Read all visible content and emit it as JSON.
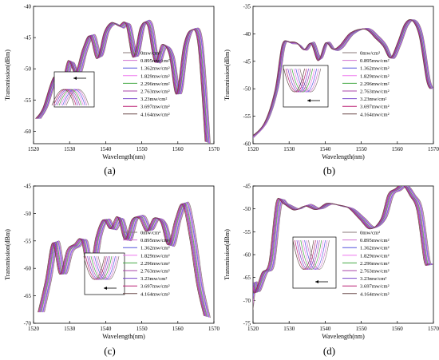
{
  "legend_entries": [
    "0mw/cm²",
    "0.895mw/cm²",
    "1.362mw/cm²",
    "1.829mw/cm²",
    "2.296mw/cm²",
    "2.763mw/cm²",
    "3.23mw/cm²",
    "3.697mw/cm²",
    "4.164mw/cm²"
  ],
  "series_colors": [
    "#8a7a7a",
    "#d070d0",
    "#5555dd",
    "#ee77ee",
    "#44aa44",
    "#aa44aa",
    "#7744cc",
    "#bb2277",
    "#6a4a4a"
  ],
  "chart_data": [
    {
      "type": "line",
      "caption": "(a)",
      "title": "",
      "xlabel": "Wavelength(nm)",
      "ylabel": "Transmission(dBm)",
      "xlim": [
        1520,
        1570
      ],
      "ylim": [
        -62,
        -40
      ],
      "xticks": [
        1520,
        1530,
        1540,
        1550,
        1560,
        1570
      ],
      "yticks": [
        -60,
        -55,
        -50,
        -45,
        -40
      ],
      "shift_per_series": 0.18,
      "x": [
        1522,
        1524,
        1527,
        1529,
        1531,
        1533,
        1535,
        1537,
        1539,
        1541,
        1543,
        1545,
        1547,
        1549,
        1551,
        1553,
        1555,
        1557,
        1559,
        1561,
        1563,
        1565,
        1567,
        1569
      ],
      "base": [
        -58,
        -56,
        -51,
        -53,
        -49,
        -51,
        -47,
        -44.5,
        -48,
        -44,
        -42.8,
        -43.5,
        -43,
        -48,
        -43,
        -42.8,
        -49,
        -46.5,
        -48,
        -54,
        -46,
        -43.5,
        -46,
        -62
      ],
      "inset_arrow": "left",
      "legend_position": "right"
    },
    {
      "type": "line",
      "caption": "(b)",
      "title": "",
      "xlabel": "Wavelength(nm)",
      "ylabel": "Transmission(dBm)",
      "xlim": [
        1520,
        1570
      ],
      "ylim": [
        -60,
        -35
      ],
      "xticks": [
        1520,
        1530,
        1540,
        1550,
        1560,
        1570
      ],
      "yticks": [
        -60,
        -55,
        -50,
        -45,
        -40,
        -35
      ],
      "shift_per_series": 0.12,
      "x": [
        1520,
        1524,
        1527,
        1529,
        1531,
        1533,
        1535,
        1537,
        1539,
        1541,
        1543,
        1545,
        1548,
        1552,
        1555,
        1557,
        1559,
        1561,
        1563,
        1565,
        1567,
        1569,
        1570
      ],
      "base": [
        -59,
        -56,
        -50,
        -42,
        -41.8,
        -42,
        -43,
        -41.5,
        -44.5,
        -41.5,
        -43,
        -42.5,
        -40,
        -39,
        -40.5,
        -42,
        -44.5,
        -42,
        -38.5,
        -37.5,
        -40,
        -48,
        -50
      ],
      "inset_arrow": "left",
      "legend_position": "right"
    },
    {
      "type": "line",
      "caption": "(c)",
      "title": "",
      "xlabel": "Wavelength(nm)",
      "ylabel": "Transmission(dBm)",
      "xlim": [
        1520,
        1570
      ],
      "ylim": [
        -70,
        -45
      ],
      "xticks": [
        1520,
        1530,
        1540,
        1550,
        1560,
        1570
      ],
      "yticks": [
        -70,
        -65,
        -60,
        -55,
        -50,
        -45
      ],
      "shift_per_series": 0.22,
      "x": [
        1523,
        1525,
        1527,
        1529,
        1531,
        1533,
        1535,
        1537,
        1539,
        1541,
        1543,
        1545,
        1547,
        1549,
        1551,
        1553,
        1555,
        1557,
        1559,
        1561,
        1563,
        1565,
        1567,
        1569
      ],
      "base": [
        -68,
        -62,
        -55,
        -61,
        -57,
        -56,
        -55,
        -61,
        -54,
        -51,
        -53,
        -51,
        -55,
        -51,
        -50.5,
        -53,
        -51,
        -52,
        -56,
        -51,
        -48,
        -54,
        -63,
        -69
      ],
      "inset_arrow": "left",
      "legend_position": "right"
    },
    {
      "type": "line",
      "caption": "(d)",
      "title": "",
      "xlabel": "Wavelength(nm)",
      "ylabel": "Transmission(dBm)",
      "xlim": [
        1520,
        1570
      ],
      "ylim": [
        -75,
        -45
      ],
      "xticks": [
        1520,
        1530,
        1540,
        1550,
        1560,
        1570
      ],
      "yticks": [
        -75,
        -70,
        -65,
        -60,
        -55,
        -50,
        -45
      ],
      "shift_per_series": 0.2,
      "x": [
        1520,
        1521,
        1522,
        1524,
        1526,
        1528,
        1530,
        1533,
        1536,
        1539,
        1542,
        1545,
        1548,
        1551,
        1554,
        1557,
        1559,
        1561,
        1563,
        1565,
        1567,
        1569,
        1570
      ],
      "base": [
        -72,
        -66,
        -68,
        -64,
        -62,
        -49,
        -49,
        -50,
        -49,
        -50,
        -49,
        -49.5,
        -50,
        -52,
        -54,
        -52,
        -47,
        -46,
        -45,
        -47,
        -50,
        -61,
        -62
      ],
      "inset_arrow": "left",
      "legend_position": "right"
    }
  ]
}
